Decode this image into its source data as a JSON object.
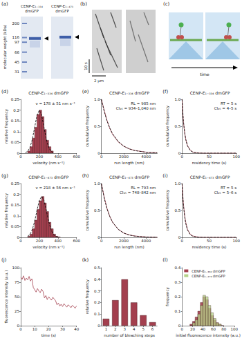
{
  "images": {
    "gel": {
      "panel": "(a)",
      "y_label": "molecular weight (kDa)",
      "ladder": [
        200,
        116,
        97,
        66,
        45,
        31
      ],
      "lanes": [
        {
          "title": "CENP-E₁₋₃₃₄ dmGFP",
          "band": 112
        },
        {
          "title": "CENP-E₁₋₄₇₃ dmGFP",
          "band": 118
        }
      ]
    },
    "kymograph": {
      "panel": "(b)",
      "time_scale": "10 s",
      "length_scale": "2 μm"
    },
    "schematic": {
      "panel": "(c)",
      "label": "time"
    }
  },
  "chart_data": [
    {
      "panel": "(d)",
      "type": "histogram",
      "title": "CENP-E₁₋₃₃₄ dmGFP",
      "x_label": "velocity (nm s⁻¹)",
      "y_label": "relative frequency",
      "bins": [
        75,
        100,
        125,
        150,
        175,
        200,
        225,
        250,
        275,
        300,
        325,
        350
      ],
      "values": [
        0.01,
        0.03,
        0.07,
        0.12,
        0.18,
        0.2,
        0.17,
        0.11,
        0.06,
        0.03,
        0.01
      ],
      "color": "#a33f4e",
      "fit": {
        "x": [
          50,
          75,
          100,
          125,
          150,
          175,
          200,
          225,
          250,
          275,
          300,
          325,
          350
        ],
        "values": [
          0.002,
          0.009,
          0.027,
          0.065,
          0.121,
          0.176,
          0.2,
          0.176,
          0.121,
          0.065,
          0.027,
          0.009,
          0.002
        ],
        "color": "#000000",
        "line_style": "dashed"
      },
      "annotations": [
        "v = 178 ± 51 nm s⁻¹"
      ],
      "xlim": [
        0,
        600
      ],
      "xticks": [
        0,
        200,
        400,
        600
      ],
      "ylim": [
        0,
        0.25
      ],
      "yticks": [
        0,
        0.05,
        0.1,
        0.15,
        0.2,
        0.25
      ],
      "grid": false
    },
    {
      "panel": "(e)",
      "type": "line",
      "title": "CENP-E₁₋₃₃₄ dmGFP",
      "x_label": "run length (nm)",
      "y_label": "cumulative frequency",
      "x": [
        0,
        250,
        500,
        750,
        1000,
        1500,
        2000,
        2500,
        3000,
        4000,
        5000
      ],
      "series": [
        {
          "values": [
            1,
            0.8,
            0.61,
            0.46,
            0.35,
            0.21,
            0.13,
            0.08,
            0.05,
            0.02,
            0.01
          ],
          "color": "#a33f4e",
          "line_style": "solid"
        },
        {
          "values": [
            1,
            0.776,
            0.602,
            0.467,
            0.362,
            0.218,
            0.131,
            0.079,
            0.048,
            0.017,
            0.006
          ],
          "color": "#000000",
          "line_style": "dashed"
        }
      ],
      "annotations": [
        "RL = 985 nm",
        "CI₉₅ = 934–1,040 nm"
      ],
      "xlim": [
        0,
        5000
      ],
      "xticks": [
        0,
        2000,
        4000
      ],
      "ylim": [
        0,
        1
      ],
      "yticks": [
        0,
        0.5,
        {
          "value": 1,
          "label": "1.0"
        }
      ],
      "grid": false
    },
    {
      "panel": "(f)",
      "type": "line",
      "title": "CENP-E₁₋₃₃₄ dmGFP",
      "x_label": "residency time (s)",
      "y_label": "cumulative frequency",
      "x": [
        0,
        1,
        2,
        3,
        5,
        7,
        10,
        15,
        20,
        30,
        40,
        60,
        80,
        100
      ],
      "series": [
        {
          "values": [
            1,
            0.8,
            0.65,
            0.53,
            0.36,
            0.25,
            0.14,
            0.06,
            0.02,
            0.005,
            0,
            0,
            0,
            0
          ],
          "color": "#a33f4e",
          "line_style": "solid"
        },
        {
          "values": [
            1,
            0.819,
            0.67,
            0.549,
            0.368,
            0.247,
            0.135,
            0.05,
            0.018,
            0.002,
            0,
            0,
            0,
            0
          ],
          "color": "#000000",
          "line_style": "dashed"
        }
      ],
      "annotations": [
        "RT = 5 s",
        "CI₉₅ = 4–5 s"
      ],
      "xlim": [
        0,
        100
      ],
      "xticks": [
        0,
        50,
        100
      ],
      "ylim": [
        0,
        1
      ],
      "yticks": [
        0,
        0.5,
        {
          "value": 1,
          "label": "1.0"
        }
      ],
      "grid": false
    },
    {
      "panel": "(g)",
      "type": "histogram",
      "title": "CENP-E₁₋₄₇₃ dmGFP",
      "x_label": "velocity (nm s⁻¹)",
      "y_label": "relative frequency",
      "bins": [
        75,
        100,
        125,
        150,
        175,
        200,
        225,
        250,
        275,
        300,
        325,
        350,
        375,
        400,
        425
      ],
      "values": [
        0.005,
        0.015,
        0.04,
        0.08,
        0.13,
        0.17,
        0.19,
        0.16,
        0.12,
        0.07,
        0.04,
        0.015,
        0.005,
        0.002
      ],
      "color": "#a33f4e",
      "fit": {
        "x": [
          75,
          100,
          125,
          150,
          175,
          200,
          225,
          250,
          275,
          300,
          325,
          350,
          375,
          400
        ],
        "values": [
          0.005,
          0.014,
          0.037,
          0.075,
          0.126,
          0.172,
          0.19,
          0.172,
          0.126,
          0.075,
          0.037,
          0.014,
          0.005,
          0.001
        ],
        "color": "#000000",
        "line_style": "dashed"
      },
      "annotations": [
        "v = 218 ± 56 nm s⁻¹"
      ],
      "xlim": [
        0,
        600
      ],
      "xticks": [
        0,
        200,
        400,
        600
      ],
      "ylim": [
        0,
        0.25
      ],
      "yticks": [
        0,
        0.05,
        0.1,
        0.15,
        0.2,
        0.25
      ],
      "grid": false
    },
    {
      "panel": "(h)",
      "type": "line",
      "title": "CENP-E₁₋₄₇₃ dmGFP",
      "x_label": "run length (nm)",
      "y_label": "cumulative frequency",
      "x": [
        0,
        250,
        500,
        750,
        1000,
        1500,
        2000,
        2500,
        3000,
        4000,
        5000
      ],
      "series": [
        {
          "values": [
            1,
            0.75,
            0.54,
            0.39,
            0.28,
            0.15,
            0.08,
            0.045,
            0.025,
            0.008,
            0.003
          ],
          "color": "#a33f4e",
          "line_style": "solid"
        },
        {
          "values": [
            1,
            0.73,
            0.532,
            0.388,
            0.283,
            0.151,
            0.08,
            0.043,
            0.023,
            0.006,
            0.002
          ],
          "color": "#000000",
          "line_style": "dashed"
        }
      ],
      "annotations": [
        "RL = 793 nm",
        "CI₉₅ = 748–842 nm"
      ],
      "xlim": [
        0,
        5000
      ],
      "xticks": [
        0,
        2000,
        4000
      ],
      "ylim": [
        0,
        1
      ],
      "yticks": [
        0,
        0.5,
        {
          "value": 1,
          "label": "1.0"
        }
      ],
      "grid": false
    },
    {
      "panel": "(i)",
      "type": "line",
      "title": "CENP-E₁₋₄₇₃ dmGFP",
      "x_label": "residency time (s)",
      "y_label": "cumulative frequency",
      "x": [
        0,
        1,
        2,
        3,
        5,
        7,
        10,
        15,
        20,
        30,
        40,
        60,
        80,
        100
      ],
      "series": [
        {
          "values": [
            1,
            0.83,
            0.68,
            0.57,
            0.39,
            0.27,
            0.15,
            0.06,
            0.025,
            0.006,
            0.001,
            0,
            0,
            0
          ],
          "color": "#a33f4e",
          "line_style": "solid"
        },
        {
          "values": [
            1,
            0.819,
            0.67,
            0.549,
            0.368,
            0.247,
            0.135,
            0.05,
            0.018,
            0.002,
            0,
            0,
            0,
            0
          ],
          "color": "#000000",
          "line_style": "dashed"
        }
      ],
      "annotations": [
        "RT = 5 s",
        "CI₉₅ = 5–6 s"
      ],
      "xlim": [
        0,
        100
      ],
      "xticks": [
        0,
        50,
        100
      ],
      "ylim": [
        0,
        1
      ],
      "yticks": [
        0,
        0.5,
        {
          "value": 1,
          "label": "1.0"
        }
      ],
      "grid": false
    },
    {
      "panel": "(j)",
      "type": "line",
      "x_label": "time (s)",
      "y_label": "fluorescence intensity (a.u.)",
      "x": [
        0,
        1,
        2,
        3,
        4,
        5,
        6,
        7,
        8,
        9,
        10,
        11,
        12,
        13,
        14,
        15,
        16,
        17,
        18,
        19,
        20,
        21,
        22,
        23,
        24,
        25,
        26,
        27,
        28,
        29,
        30,
        31,
        32,
        33,
        34,
        35,
        36,
        37,
        38,
        39,
        40
      ],
      "series": [
        {
          "values": [
            84,
            80,
            86,
            78,
            82,
            79,
            85,
            77,
            81,
            66,
            62,
            58,
            64,
            60,
            57,
            63,
            59,
            48,
            52,
            45,
            50,
            47,
            44,
            49,
            46,
            43,
            36,
            39,
            34,
            37,
            33,
            38,
            35,
            32,
            36,
            34,
            31,
            35,
            33,
            30,
            34
          ],
          "color": "#a33f4e",
          "line_style": "solid"
        }
      ],
      "xlim": [
        0,
        40
      ],
      "xticks": [
        0,
        10,
        20,
        30,
        40
      ],
      "ylim": [
        0,
        100
      ],
      "yticks": [
        0,
        25,
        50,
        75,
        100
      ],
      "grid": false
    },
    {
      "panel": "(k)",
      "type": "bar",
      "x_label": "number of bleaching steps",
      "y_label": "relative frequency",
      "categories": [
        "1",
        "2",
        "3",
        "4",
        "5",
        "6"
      ],
      "values": [
        0.06,
        0.22,
        0.4,
        0.2,
        0.09,
        0.03
      ],
      "color": "#a33f4e",
      "ylim": [
        0,
        0.5
      ],
      "yticks": [
        0,
        0.1,
        0.2,
        0.3,
        0.4,
        0.5
      ],
      "grid": false
    },
    {
      "panel": "(l)",
      "type": "histogram",
      "x_label": "initial fluorescence intensity (a.u.)",
      "y_label": "frequency",
      "bins": [
        15,
        20,
        25,
        30,
        35,
        40,
        45,
        50,
        55,
        60,
        65,
        70,
        75,
        80
      ],
      "series": [
        {
          "name": "CENP-E₁₋₃₃₄ dmGFP",
          "color": "#a33f4e",
          "values": [
            0.01,
            0.03,
            0.06,
            0.1,
            0.16,
            0.2,
            0.18,
            0.12,
            0.07,
            0.04,
            0.02,
            0.01,
            0
          ]
        },
        {
          "name": "CENP-E₁₋₄₇₃ dmGFP",
          "color": "#b5d38a",
          "values": [
            0,
            0.02,
            0.04,
            0.08,
            0.14,
            0.21,
            0.2,
            0.14,
            0.09,
            0.05,
            0.02,
            0.01,
            0
          ]
        }
      ],
      "legend": "upper left",
      "xlim": [
        0,
        100
      ],
      "xticks": [
        0,
        20,
        40,
        60,
        80,
        100
      ],
      "ylim": [
        0,
        0.4
      ],
      "yticks": [
        0,
        0.1,
        0.2,
        0.3,
        0.4
      ],
      "grid": false
    }
  ]
}
